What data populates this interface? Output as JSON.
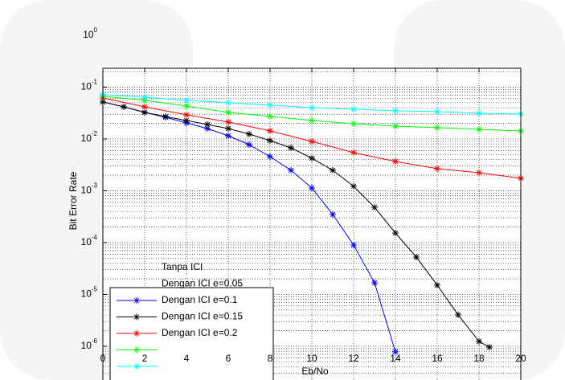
{
  "chart_data": {
    "type": "line",
    "xlabel": "Eb/No",
    "ylabel": "Bit Error Rate",
    "log_y": true,
    "grid": true,
    "xlim": [
      0,
      20
    ],
    "xticks": [
      0,
      2,
      4,
      6,
      8,
      10,
      12,
      14,
      16,
      18,
      20
    ],
    "ylim": [
      2.23e-07,
      0.231
    ],
    "yticks": [
      {
        "value": 1,
        "label": "10^0"
      },
      {
        "value": 0.1,
        "label": "10^-1"
      },
      {
        "value": 0.01,
        "label": "10^-2"
      },
      {
        "value": 0.001,
        "label": "10^-3"
      },
      {
        "value": 0.0001,
        "label": "10^-4"
      },
      {
        "value": 1e-05,
        "label": "10^-5"
      },
      {
        "value": 1e-06,
        "label": "10^-6"
      }
    ],
    "legend": "lower left",
    "legend_labels": [
      "Tanpa ICI",
      "Dengan ICI e=0.05",
      "Dengan ICI e=0.1",
      "Dengan ICI e=0.15",
      "Dengan ICI e=0.2"
    ],
    "series": [
      {
        "color": "#0000ff",
        "x": [
          0,
          1,
          2,
          3,
          4,
          5,
          6,
          7,
          8,
          9,
          10,
          11,
          12,
          13,
          14
        ],
        "values": [
          0.0517,
          0.0417,
          0.0325,
          0.0262,
          0.0204,
          0.0159,
          0.0115,
          0.00778,
          0.00456,
          0.00249,
          0.00113,
          0.000349,
          8.98e-05,
          1.68e-05,
          7.8e-07
        ]
      },
      {
        "color": "#000000",
        "x": [
          0,
          1,
          2,
          3,
          4,
          5,
          6,
          7,
          8,
          9,
          10,
          11,
          12,
          13,
          14,
          15,
          16,
          17,
          18,
          18.5
        ],
        "values": [
          0.0517,
          0.0417,
          0.0325,
          0.027,
          0.0227,
          0.019,
          0.0159,
          0.0124,
          0.0093,
          0.00675,
          0.00425,
          0.00249,
          0.00122,
          0.00048,
          0.000153,
          5.26e-05,
          1.51e-05,
          4.03e-06,
          1.24e-06,
          9.6e-07
        ]
      },
      {
        "color": "#ff0000",
        "x": [
          0,
          2,
          4,
          6,
          8,
          10,
          12,
          14,
          16,
          18,
          20
        ],
        "values": [
          0.0618,
          0.0417,
          0.0292,
          0.0212,
          0.0143,
          0.00898,
          0.00545,
          0.00368,
          0.00267,
          0.00223,
          0.00174
        ]
      },
      {
        "color": "#00ff00",
        "x": [
          0,
          2,
          4,
          6,
          8,
          10,
          12,
          14,
          16,
          18,
          20
        ],
        "values": [
          0.0664,
          0.0555,
          0.0432,
          0.0325,
          0.0272,
          0.0227,
          0.0197,
          0.0177,
          0.0165,
          0.0153,
          0.0143
        ]
      },
      {
        "color": "#00ffff",
        "x": [
          0,
          2,
          4,
          6,
          8,
          10,
          12,
          14,
          16,
          18,
          20
        ],
        "values": [
          0.0713,
          0.064,
          0.0555,
          0.0499,
          0.0448,
          0.0402,
          0.0375,
          0.0349,
          0.0337,
          0.0313,
          0.0303
        ]
      }
    ]
  }
}
